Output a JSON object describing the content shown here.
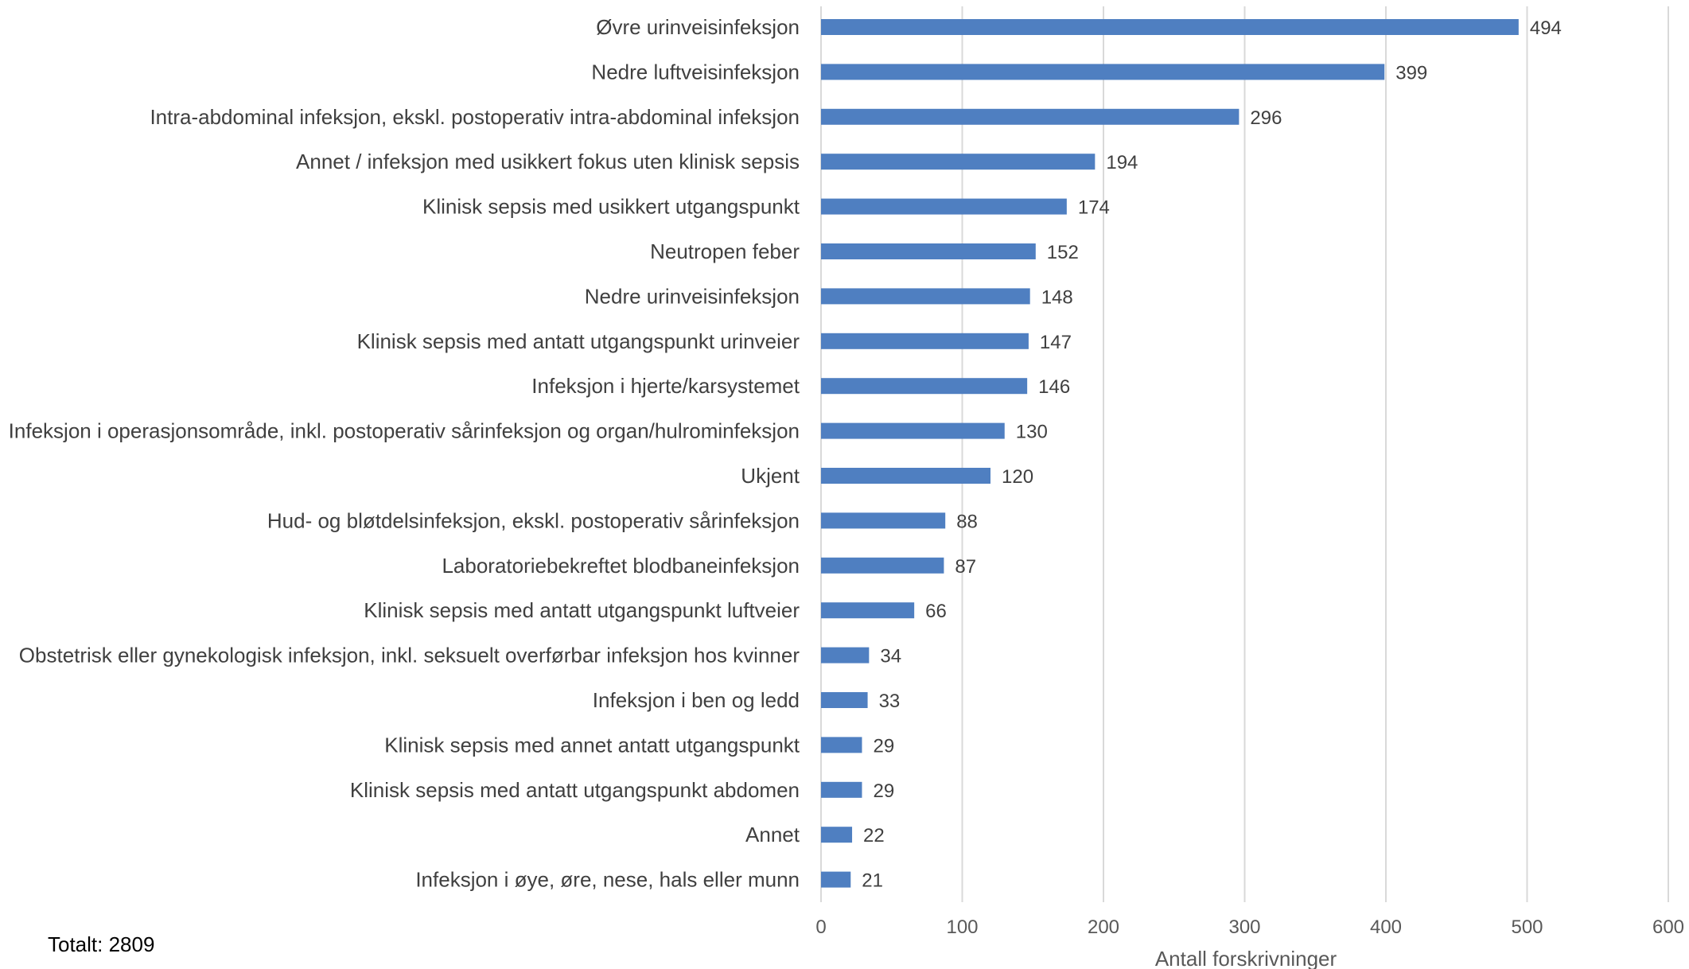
{
  "colors": {
    "bar": "#4f7fc1",
    "grid": "#d9d9d9",
    "text": "#404040",
    "axis_text": "#595959"
  },
  "total": "Totalt: 2809",
  "chart_data": {
    "type": "bar",
    "orientation": "horizontal",
    "title": "",
    "xlabel": "Antall forskrivninger",
    "ylabel": "",
    "xlim": [
      0,
      600
    ],
    "xticks": [
      0,
      100,
      200,
      300,
      400,
      500,
      600
    ],
    "grid": true,
    "data_labels": true,
    "categories": [
      "Øvre urinveisinfeksjon",
      "Nedre luftveisinfeksjon",
      "Intra-abdominal infeksjon, ekskl. postoperativ intra-abdominal infeksjon",
      "Annet / infeksjon med usikkert fokus uten klinisk sepsis",
      "Klinisk sepsis med usikkert utgangspunkt",
      "Neutropen feber",
      "Nedre urinveisinfeksjon",
      "Klinisk sepsis med antatt utgangspunkt urinveier",
      "Infeksjon i hjerte/karsystemet",
      "Infeksjon i operasjonsområde, inkl. postoperativ sårinfeksjon og organ/hulrominfeksjon",
      "Ukjent",
      "Hud- og bløtdelsinfeksjon, ekskl. postoperativ sårinfeksjon",
      "Laboratoriebekreftet blodbaneinfeksjon",
      "Klinisk sepsis med antatt utgangspunkt luftveier",
      "Obstetrisk eller gynekologisk infeksjon, inkl. seksuelt overførbar infeksjon hos kvinner",
      "Infeksjon i ben og ledd",
      "Klinisk sepsis med annet antatt utgangspunkt",
      "Klinisk sepsis med antatt utgangspunkt abdomen",
      "Annet",
      "Infeksjon i øye, øre, nese, hals eller munn"
    ],
    "values": [
      494,
      399,
      296,
      194,
      174,
      152,
      148,
      147,
      146,
      130,
      120,
      88,
      87,
      66,
      34,
      33,
      29,
      29,
      22,
      21
    ]
  }
}
